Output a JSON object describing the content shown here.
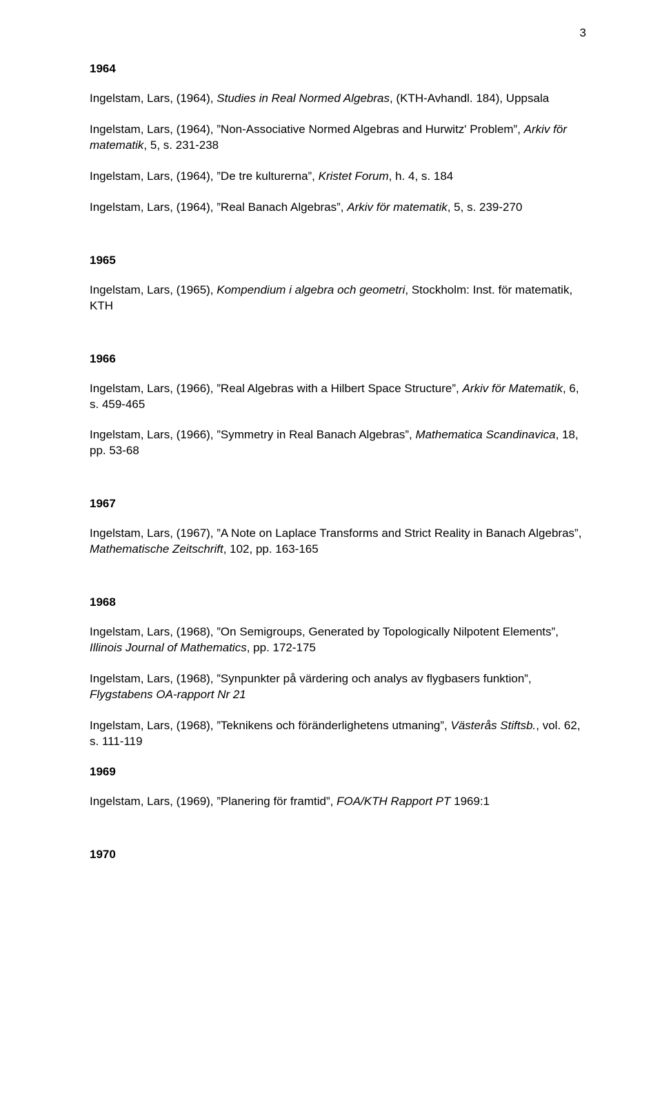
{
  "page_number": "3",
  "sections": [
    {
      "year": "1964",
      "entries": [
        {
          "author": "Ingelstam, Lars, (1964), ",
          "title_italic": "Studies in Real Normed Algebras",
          "mid": ", (KTH-Avhandl. 184), Uppsala",
          "tail": ""
        },
        {
          "author": "Ingelstam, Lars, (1964), ”Non-Associative Normed Algebras and Hurwitz' Problem”, ",
          "title_italic": "Arkiv för matematik",
          "mid": ", 5, s. 231-238",
          "tail": ""
        },
        {
          "author": "Ingelstam, Lars, (1964), ”De tre kulturerna”, ",
          "title_italic": "Kristet Forum",
          "mid": ", h. 4, s. 184",
          "tail": ""
        },
        {
          "author": "Ingelstam, Lars, (1964), ”Real Banach Algebras”, ",
          "title_italic": "Arkiv för matematik",
          "mid": ", 5, s. 239-270",
          "tail": ""
        }
      ]
    },
    {
      "year": "1965",
      "entries": [
        {
          "author": "Ingelstam, Lars, (1965), ",
          "title_italic": "Kompendium i algebra och geometri",
          "mid": ", Stockholm: Inst. för matematik, KTH",
          "tail": ""
        }
      ]
    },
    {
      "year": "1966",
      "entries": [
        {
          "author": "Ingelstam, Lars, (1966), ”Real Algebras with a Hilbert Space Structure”, ",
          "title_italic": "Arkiv för Matematik",
          "mid": ", 6, s. 459-465",
          "tail": ""
        },
        {
          "author": "Ingelstam, Lars, (1966), ”Symmetry in Real Banach Algebras”, ",
          "title_italic": "Mathematica Scandinavica",
          "mid": ", 18, pp. 53-68",
          "tail": ""
        }
      ]
    },
    {
      "year": "1967",
      "entries": [
        {
          "author": "Ingelstam, Lars, (1967), ”A Note on Laplace Transforms and Strict Reality in Banach Algebras”, ",
          "title_italic": "Mathematische Zeitschrift",
          "mid": ", 102, pp. 163-165",
          "tail": ""
        }
      ]
    },
    {
      "year": "1968",
      "entries": [
        {
          "author": "Ingelstam, Lars, (1968), ”On Semigroups, Generated by Topologically Nilpotent Elements”, ",
          "title_italic": "Illinois Journal of Mathematics",
          "mid": ", pp. 172-175",
          "tail": ""
        },
        {
          "author": "Ingelstam, Lars, (1968), ”Synpunkter på värdering och analys av flygbasers funktion”, ",
          "title_italic": "Flygstabens OA-rapport Nr 21",
          "mid": "",
          "tail": ""
        },
        {
          "author": "Ingelstam, Lars, (1968), ”Teknikens och föränderlighetens utmaning”, ",
          "title_italic": "Västerås Stiftsb.",
          "mid": ", vol. 62, s. 111-119",
          "tail": ""
        }
      ]
    },
    {
      "year": "1969",
      "tight": true,
      "entries": [
        {
          "author": "Ingelstam, Lars, (1969), ”Planering för framtid”, ",
          "title_italic": "FOA/KTH Rapport PT",
          "mid": " 1969:1",
          "tail": ""
        }
      ]
    },
    {
      "year": "1970",
      "entries": []
    }
  ]
}
